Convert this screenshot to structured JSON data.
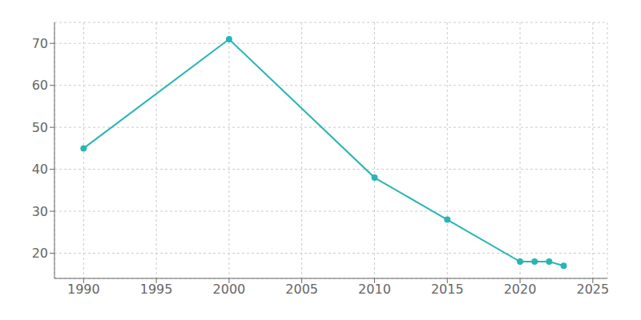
{
  "chart_data": {
    "type": "line",
    "x": [
      1990,
      2000,
      2010,
      2015,
      2020,
      2021,
      2022,
      2023
    ],
    "values": [
      45,
      71,
      38,
      28,
      18,
      18,
      18,
      17
    ],
    "color": "#29b5b5",
    "marker": "circle",
    "xlim": [
      1988,
      2026
    ],
    "ylim": [
      14,
      75
    ],
    "xticks": [
      1990,
      1995,
      2000,
      2005,
      2010,
      2015,
      2020,
      2025
    ],
    "yticks": [
      20,
      30,
      40,
      50,
      60,
      70
    ],
    "grid": true
  }
}
